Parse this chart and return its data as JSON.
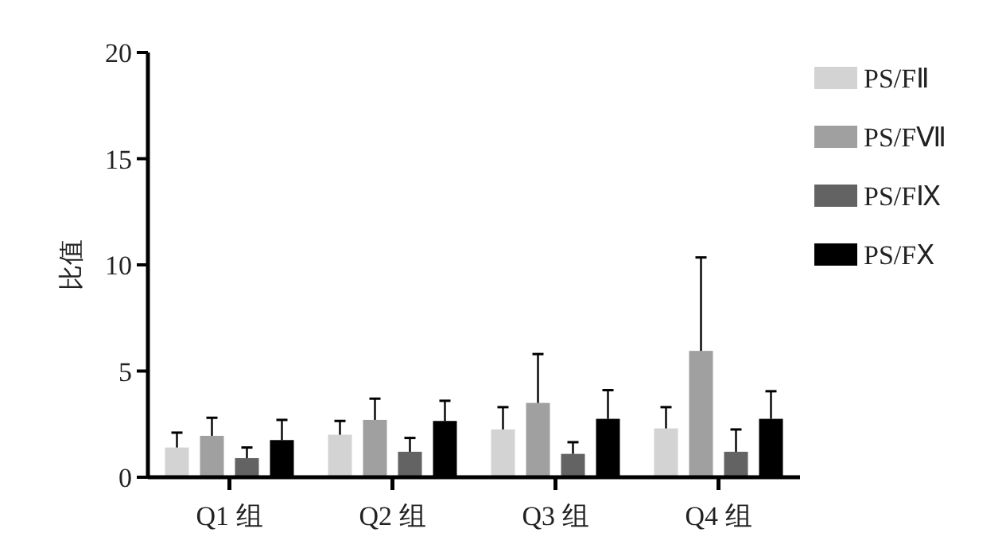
{
  "chart_data": {
    "type": "bar",
    "ylabel": "比值",
    "categories": [
      "Q1 组",
      "Q2 组",
      "Q3 组",
      "Q4 组"
    ],
    "ylim": [
      0,
      20
    ],
    "yticks": [
      0,
      5,
      10,
      15,
      20
    ],
    "grid": false,
    "legend": "right",
    "series": [
      {
        "name": "PS/FⅡ",
        "color": "#d3d3d3",
        "values": [
          1.4,
          2.0,
          2.25,
          2.3
        ],
        "errors": [
          [
            1.4,
            2.1
          ],
          [
            2.0,
            2.65
          ],
          [
            2.25,
            3.3
          ],
          [
            2.3,
            3.3
          ]
        ]
      },
      {
        "name": "PS/FⅦ",
        "color": "#a0a0a0",
        "values": [
          1.95,
          2.7,
          3.5,
          5.95
        ],
        "errors": [
          [
            1.95,
            2.8
          ],
          [
            2.7,
            3.7
          ],
          [
            3.5,
            5.8
          ],
          [
            5.95,
            10.35
          ]
        ]
      },
      {
        "name": "PS/FⅨ",
        "color": "#636363",
        "values": [
          0.9,
          1.2,
          1.1,
          1.2
        ],
        "errors": [
          [
            0.9,
            1.4
          ],
          [
            1.2,
            1.85
          ],
          [
            1.1,
            1.65
          ],
          [
            1.2,
            2.25
          ]
        ]
      },
      {
        "name": "PS/FⅩ",
        "color": "#000000",
        "values": [
          1.75,
          2.65,
          2.75,
          2.75
        ],
        "errors": [
          [
            1.75,
            2.7
          ],
          [
            2.65,
            3.6
          ],
          [
            2.75,
            4.1
          ],
          [
            2.75,
            4.05
          ]
        ]
      }
    ]
  }
}
